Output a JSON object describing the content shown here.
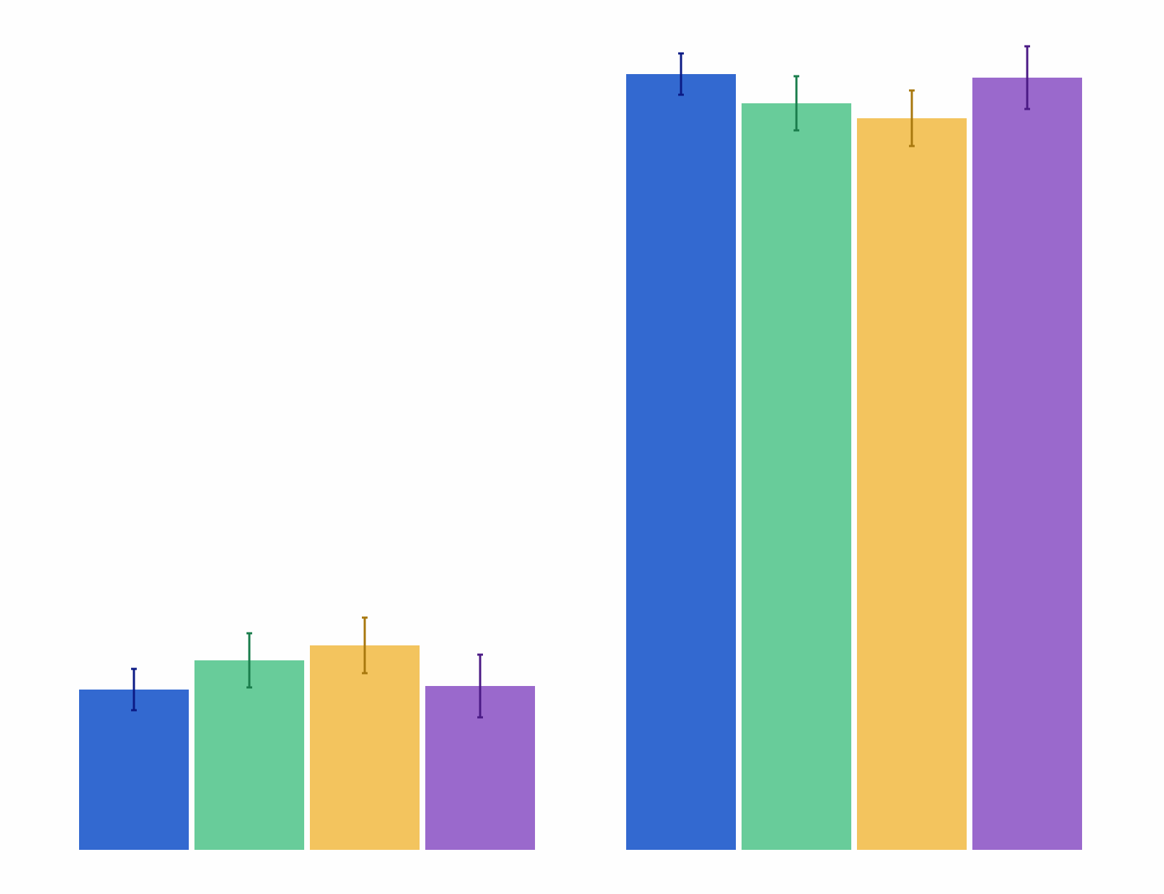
{
  "chart_data": {
    "type": "bar",
    "categories": [
      null,
      null
    ],
    "ylim": [
      0,
      1150
    ],
    "series": [
      {
        "color": "#3369d0",
        "error_color": "#0b1a85",
        "values": [
          225,
          1089
        ],
        "errors": [
          29,
          29
        ]
      },
      {
        "color": "#68cc9a",
        "error_color": "#1a7d4c",
        "values": [
          266,
          1048
        ],
        "errors": [
          38,
          38
        ]
      },
      {
        "color": "#f3c45e",
        "error_color": "#a8780e",
        "values": [
          287,
          1027
        ],
        "errors": [
          39,
          39
        ]
      },
      {
        "color": "#9a69cc",
        "error_color": "#4b1a85",
        "values": [
          230,
          1084
        ],
        "errors": [
          44,
          44
        ]
      }
    ]
  }
}
